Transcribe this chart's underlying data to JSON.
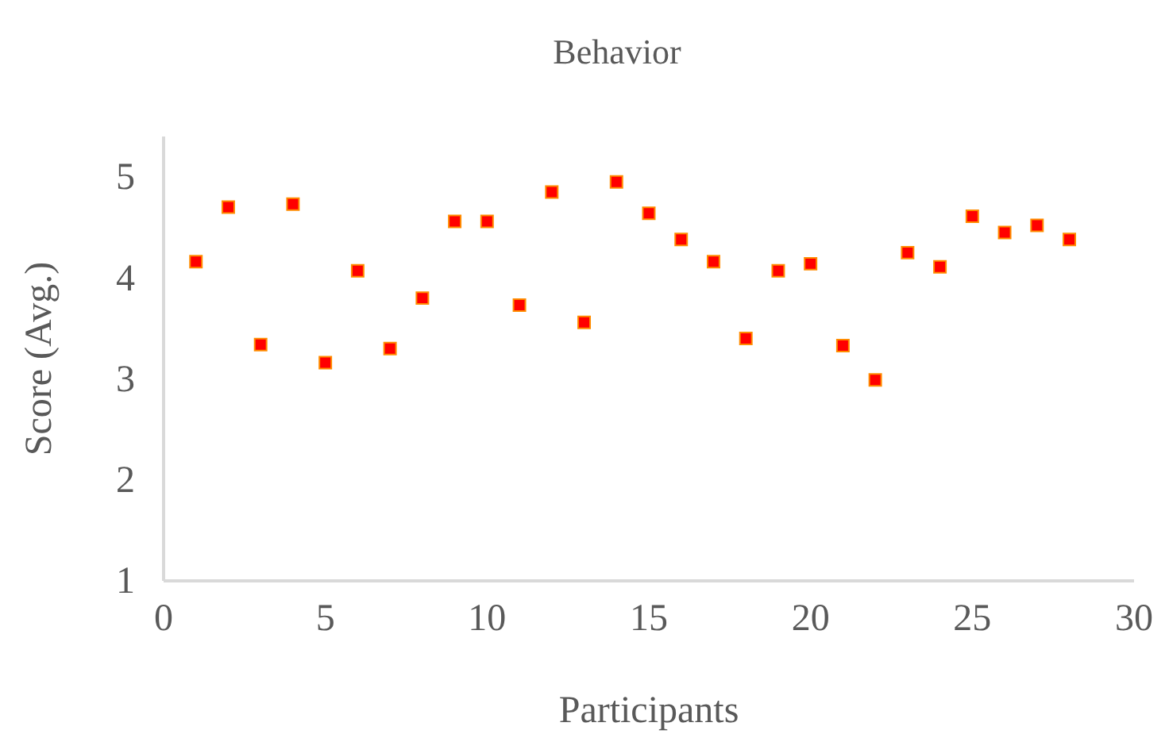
{
  "chart_data": {
    "type": "scatter",
    "title": "Behavior",
    "xlabel": "Participants",
    "ylabel": "Score (Avg.)",
    "x": [
      1,
      2,
      3,
      4,
      5,
      6,
      7,
      8,
      9,
      10,
      11,
      12,
      13,
      14,
      15,
      16,
      17,
      18,
      19,
      20,
      21,
      22,
      23,
      24,
      25,
      26,
      27,
      28
    ],
    "values": [
      4.16,
      4.7,
      3.34,
      4.73,
      3.16,
      4.07,
      3.3,
      3.8,
      4.56,
      4.56,
      3.73,
      4.85,
      3.56,
      4.95,
      4.64,
      4.38,
      4.16,
      3.4,
      4.07,
      4.14,
      3.33,
      2.99,
      4.25,
      4.11,
      4.61,
      4.45,
      4.52,
      4.38
    ],
    "color": "#ff0000",
    "marker": "square",
    "xlim": [
      0,
      30
    ],
    "xticks": [
      0,
      5,
      10,
      15,
      20,
      25,
      30
    ],
    "ylim": [
      1,
      5.4
    ],
    "yticks": [
      1,
      2,
      3,
      4,
      5
    ],
    "grid": false
  }
}
